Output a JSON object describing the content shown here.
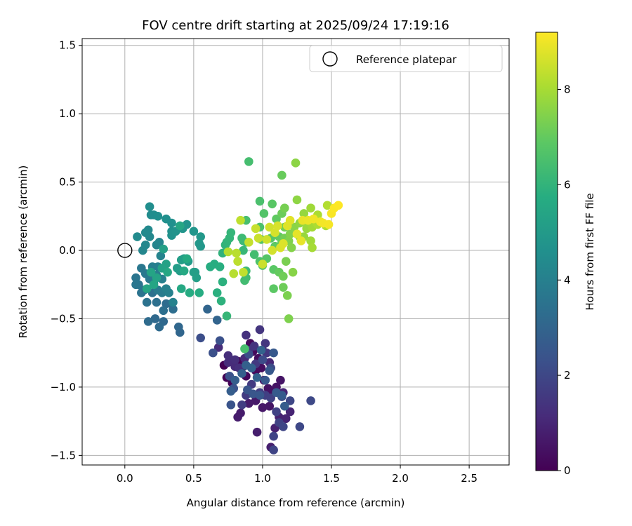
{
  "chart_data": {
    "type": "scatter",
    "title": "FOV centre drift starting at 2025/09/24 17:19:16",
    "xlabel": "Angular distance from reference (arcmin)",
    "ylabel": "Rotation from reference (arcmin)",
    "xlim": [
      -0.31,
      2.79
    ],
    "ylim": [
      -1.57,
      1.55
    ],
    "xticks": [
      0.0,
      0.5,
      1.0,
      1.5,
      2.0,
      2.5
    ],
    "xtick_labels": [
      "0.0",
      "0.5",
      "1.0",
      "1.5",
      "2.0",
      "2.5"
    ],
    "yticks": [
      -1.5,
      -1.0,
      -0.5,
      0.0,
      0.5,
      1.0,
      1.5
    ],
    "ytick_labels": [
      "−1.5",
      "−1.0",
      "−0.5",
      "0.0",
      "0.5",
      "1.0",
      "1.5"
    ],
    "grid": true,
    "legend": {
      "position": "top-right",
      "label": "Reference platepar"
    },
    "reference_point": {
      "x": 0.0,
      "y": 0.0
    },
    "colorbar": {
      "label": "Hours from first FF file",
      "colormap": "viridis",
      "range": [
        0,
        9.2
      ],
      "ticks": [
        0,
        2,
        4,
        6,
        8
      ],
      "tick_labels": [
        "0",
        "2",
        "4",
        "6",
        "8"
      ]
    },
    "series": [
      {
        "name": "FOV centre",
        "points": [
          [
            0.72,
            -0.84
          ],
          [
            0.74,
            -0.93
          ],
          [
            0.78,
            -0.97
          ],
          [
            0.82,
            -0.81
          ],
          [
            0.86,
            -0.85
          ],
          [
            0.88,
            -0.92
          ],
          [
            0.91,
            -0.68
          ],
          [
            0.93,
            -0.74
          ],
          [
            0.95,
            -0.88
          ],
          [
            0.97,
            -0.79
          ],
          [
            0.99,
            -0.86
          ],
          [
            1.01,
            -0.95
          ],
          [
            1.04,
            -1.01
          ],
          [
            1.07,
            -1.03
          ],
          [
            1.1,
            -1.0
          ],
          [
            1.13,
            -0.95
          ],
          [
            1.05,
            -1.14
          ],
          [
            1.0,
            -1.15
          ],
          [
            0.95,
            -1.1
          ],
          [
            0.9,
            -1.12
          ],
          [
            0.84,
            -1.19
          ],
          [
            0.82,
            -1.22
          ],
          [
            0.96,
            -1.33
          ],
          [
            1.06,
            -1.44
          ],
          [
            1.09,
            -1.3
          ],
          [
            1.12,
            -1.22
          ],
          [
            1.17,
            -1.23
          ],
          [
            1.2,
            -1.18
          ],
          [
            1.15,
            -1.04
          ],
          [
            1.05,
            -0.82
          ],
          [
            1.0,
            -0.73
          ],
          [
            0.87,
            -0.79
          ],
          [
            0.8,
            -0.85
          ],
          [
            0.75,
            -0.82
          ],
          [
            0.68,
            -0.71
          ],
          [
            0.75,
            -0.77
          ],
          [
            0.8,
            -0.8
          ],
          [
            0.83,
            -0.86
          ],
          [
            0.88,
            -0.62
          ],
          [
            0.9,
            -0.73
          ],
          [
            0.94,
            -0.7
          ],
          [
            0.98,
            -0.58
          ],
          [
            1.02,
            -0.68
          ],
          [
            1.03,
            -0.75
          ],
          [
            1.0,
            -0.8
          ],
          [
            0.95,
            -0.83
          ],
          [
            0.92,
            -0.98
          ],
          [
            0.88,
            -1.06
          ],
          [
            0.85,
            -1.13
          ],
          [
            0.98,
            -1.04
          ],
          [
            1.02,
            -1.06
          ],
          [
            1.06,
            -1.08
          ],
          [
            1.1,
            -1.18
          ],
          [
            1.12,
            -1.26
          ],
          [
            1.08,
            -1.36
          ],
          [
            1.08,
            -1.46
          ],
          [
            1.15,
            -1.29
          ],
          [
            1.2,
            -1.1
          ],
          [
            1.27,
            -1.29
          ],
          [
            1.35,
            -1.1
          ],
          [
            1.14,
            -1.07
          ],
          [
            1.06,
            -0.86
          ],
          [
            1.0,
            -0.8
          ],
          [
            0.9,
            -0.76
          ],
          [
            0.55,
            -0.64
          ],
          [
            0.64,
            -0.75
          ],
          [
            0.69,
            -0.66
          ],
          [
            0.76,
            -0.92
          ],
          [
            0.79,
            -1.01
          ],
          [
            0.77,
            -1.13
          ],
          [
            0.89,
            -1.02
          ],
          [
            0.93,
            -1.05
          ],
          [
            0.98,
            -1.06
          ],
          [
            1.02,
            -0.95
          ],
          [
            1.05,
            -0.88
          ],
          [
            1.08,
            -0.75
          ],
          [
            1.1,
            -1.04
          ],
          [
            1.14,
            -1.06
          ],
          [
            1.16,
            -1.14
          ],
          [
            0.77,
            -1.03
          ],
          [
            0.8,
            -0.95
          ],
          [
            0.85,
            -0.9
          ],
          [
            0.88,
            -0.84
          ],
          [
            0.92,
            -0.86
          ],
          [
            0.96,
            -0.93
          ],
          [
            0.99,
            -0.73
          ],
          [
            0.67,
            -0.51
          ],
          [
            0.6,
            -0.43
          ],
          [
            0.4,
            -0.6
          ],
          [
            0.39,
            -0.56
          ],
          [
            0.28,
            -0.52
          ],
          [
            0.22,
            -0.5
          ],
          [
            0.25,
            -0.56
          ],
          [
            0.17,
            -0.52
          ],
          [
            0.3,
            -0.39
          ],
          [
            0.34,
            -0.39
          ],
          [
            0.35,
            -0.43
          ],
          [
            0.28,
            -0.44
          ],
          [
            0.23,
            -0.38
          ],
          [
            0.2,
            -0.31
          ],
          [
            0.16,
            -0.38
          ],
          [
            0.14,
            -0.29
          ],
          [
            0.12,
            -0.31
          ],
          [
            0.1,
            -0.25
          ],
          [
            0.08,
            -0.2
          ],
          [
            0.08,
            -0.25
          ],
          [
            0.12,
            -0.13
          ],
          [
            0.15,
            -0.17
          ],
          [
            0.18,
            -0.21
          ],
          [
            0.21,
            -0.24
          ],
          [
            0.24,
            -0.29
          ],
          [
            0.27,
            -0.31
          ],
          [
            0.23,
            -0.18
          ],
          [
            0.2,
            -0.12
          ],
          [
            0.24,
            -0.12
          ],
          [
            0.27,
            -0.21
          ],
          [
            0.3,
            -0.28
          ],
          [
            0.32,
            -0.31
          ],
          [
            0.35,
            -0.38
          ],
          [
            0.26,
            -0.04
          ],
          [
            0.23,
            0.04
          ],
          [
            0.25,
            0.06
          ],
          [
            0.13,
            0.0
          ],
          [
            0.15,
            0.04
          ],
          [
            0.18,
            0.1
          ],
          [
            0.17,
            0.15
          ],
          [
            0.15,
            0.13
          ],
          [
            0.09,
            0.1
          ],
          [
            0.19,
            0.26
          ],
          [
            0.21,
            0.26
          ],
          [
            0.18,
            0.32
          ],
          [
            0.24,
            0.25
          ],
          [
            0.3,
            0.23
          ],
          [
            0.34,
            0.2
          ],
          [
            0.34,
            0.14
          ],
          [
            0.34,
            0.11
          ],
          [
            0.37,
            0.14
          ],
          [
            0.45,
            0.19
          ],
          [
            0.42,
            0.16
          ],
          [
            0.5,
            0.14
          ],
          [
            0.55,
            0.03
          ],
          [
            0.54,
            0.05
          ],
          [
            0.55,
            0.1
          ],
          [
            0.51,
            -0.16
          ],
          [
            0.46,
            -0.08
          ],
          [
            0.43,
            -0.06
          ],
          [
            0.4,
            -0.15
          ],
          [
            0.38,
            -0.13
          ],
          [
            0.41,
            -0.07
          ],
          [
            0.5,
            -0.16
          ],
          [
            0.52,
            -0.2
          ],
          [
            0.28,
            0.01
          ],
          [
            0.3,
            -0.1
          ],
          [
            0.27,
            -0.13
          ],
          [
            0.23,
            -0.2
          ],
          [
            0.19,
            -0.16
          ],
          [
            0.21,
            -0.25
          ],
          [
            0.16,
            -0.28
          ],
          [
            0.4,
            0.18
          ],
          [
            0.31,
            -0.16
          ],
          [
            0.41,
            -0.28
          ],
          [
            0.43,
            -0.15
          ],
          [
            0.45,
            -0.06
          ],
          [
            0.47,
            -0.31
          ],
          [
            0.54,
            -0.31
          ],
          [
            0.62,
            -0.12
          ],
          [
            0.65,
            -0.1
          ],
          [
            0.69,
            -0.12
          ],
          [
            0.67,
            -0.31
          ],
          [
            0.71,
            -0.23
          ],
          [
            0.7,
            -0.37
          ],
          [
            0.71,
            -0.02
          ],
          [
            0.73,
            0.04
          ],
          [
            0.74,
            0.06
          ],
          [
            0.76,
            0.09
          ],
          [
            0.77,
            0.13
          ],
          [
            0.74,
            -0.48
          ],
          [
            0.86,
            0.0
          ],
          [
            0.86,
            0.07
          ],
          [
            0.88,
            0.06
          ],
          [
            0.85,
            0.09
          ],
          [
            0.88,
            -0.15
          ],
          [
            0.88,
            -0.2
          ],
          [
            0.87,
            -0.22
          ],
          [
            0.94,
            -0.03
          ],
          [
            0.9,
            0.65
          ],
          [
            0.88,
            0.22
          ],
          [
            0.87,
            -0.72
          ],
          [
            0.98,
            0.36
          ],
          [
            0.98,
            0.17
          ],
          [
            0.98,
            -0.08
          ],
          [
            1.0,
            -0.11
          ],
          [
            0.99,
            0.08
          ],
          [
            1.01,
            0.27
          ],
          [
            1.03,
            -0.06
          ],
          [
            1.06,
            0.09
          ],
          [
            1.07,
            0.34
          ],
          [
            1.08,
            -0.14
          ],
          [
            1.08,
            -0.28
          ],
          [
            1.09,
            0.03
          ],
          [
            1.1,
            0.23
          ],
          [
            1.12,
            0.1
          ],
          [
            1.12,
            -0.16
          ],
          [
            1.14,
            0.06
          ],
          [
            1.14,
            0.55
          ],
          [
            1.14,
            0.27
          ],
          [
            1.15,
            -0.27
          ],
          [
            1.15,
            -0.19
          ],
          [
            1.16,
            0.09
          ],
          [
            1.16,
            0.17
          ],
          [
            1.16,
            0.31
          ],
          [
            1.17,
            -0.08
          ],
          [
            1.18,
            -0.33
          ],
          [
            1.19,
            -0.5
          ],
          [
            1.19,
            0.07
          ],
          [
            1.2,
            0.12
          ],
          [
            1.21,
            0.02
          ],
          [
            1.22,
            -0.16
          ],
          [
            1.23,
            0.17
          ],
          [
            1.24,
            0.64
          ],
          [
            1.25,
            0.37
          ],
          [
            1.27,
            0.2
          ],
          [
            1.27,
            0.1
          ],
          [
            1.3,
            0.27
          ],
          [
            1.3,
            0.1
          ],
          [
            1.32,
            0.16
          ],
          [
            1.32,
            0.2
          ],
          [
            1.35,
            0.31
          ],
          [
            1.35,
            0.07
          ],
          [
            1.36,
            0.17
          ],
          [
            1.36,
            0.02
          ],
          [
            1.38,
            0.21
          ],
          [
            1.4,
            0.26
          ],
          [
            1.4,
            0.19
          ],
          [
            1.46,
            0.18
          ],
          [
            1.47,
            0.33
          ],
          [
            0.75,
            -0.01
          ],
          [
            0.79,
            -0.17
          ],
          [
            0.81,
            -0.02
          ],
          [
            0.82,
            -0.08
          ],
          [
            0.84,
            0.22
          ],
          [
            0.86,
            -0.16
          ],
          [
            0.9,
            0.06
          ],
          [
            0.95,
            0.16
          ],
          [
            0.97,
            0.09
          ],
          [
            1.0,
            -0.1
          ],
          [
            1.03,
            0.08
          ],
          [
            1.05,
            0.17
          ],
          [
            1.07,
            0.0
          ],
          [
            1.09,
            0.13
          ],
          [
            1.11,
            0.18
          ],
          [
            1.13,
            0.02
          ],
          [
            1.15,
            0.05
          ],
          [
            1.18,
            0.18
          ],
          [
            1.2,
            0.22
          ],
          [
            1.25,
            0.12
          ],
          [
            1.28,
            0.07
          ],
          [
            1.29,
            0.22
          ],
          [
            1.33,
            0.22
          ],
          [
            1.37,
            0.23
          ],
          [
            1.42,
            0.21
          ],
          [
            1.44,
            0.2
          ],
          [
            1.48,
            0.19
          ],
          [
            1.5,
            0.27
          ],
          [
            1.52,
            0.31
          ],
          [
            1.55,
            0.33
          ]
        ]
      }
    ]
  }
}
